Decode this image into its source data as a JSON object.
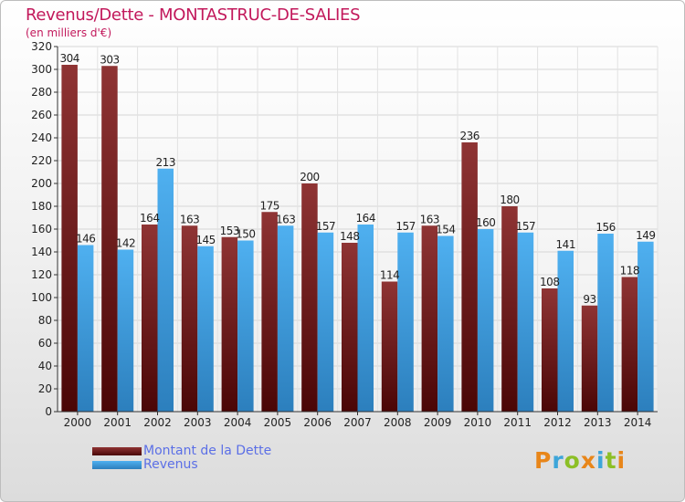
{
  "chart_data": {
    "type": "bar",
    "title": "Revenus/Dette - MONTASTRUC-DE-SALIES",
    "subtitle": "(en milliers d'€)",
    "categories": [
      "2000",
      "2001",
      "2002",
      "2003",
      "2004",
      "2005",
      "2006",
      "2007",
      "2008",
      "2009",
      "2010",
      "2011",
      "2012",
      "2013",
      "2014"
    ],
    "series": [
      {
        "name": "Montant de la Dette",
        "color": "#7a1f1f",
        "values": [
          304,
          303,
          164,
          163,
          153,
          175,
          200,
          148,
          114,
          163,
          236,
          180,
          108,
          93,
          118
        ]
      },
      {
        "name": "Revenus",
        "color": "#3d9be0",
        "values": [
          146,
          142,
          213,
          145,
          150,
          163,
          157,
          164,
          157,
          154,
          160,
          157,
          141,
          156,
          149
        ]
      }
    ],
    "ylim": [
      0,
      320
    ],
    "yticks": [
      0,
      20,
      40,
      60,
      80,
      100,
      120,
      140,
      160,
      180,
      200,
      220,
      240,
      260,
      280,
      300,
      320
    ],
    "grid": true,
    "legend": "bottom-left"
  },
  "brand": {
    "letters": [
      "P",
      "r",
      "o",
      "x",
      "i",
      "t",
      "i"
    ],
    "colors": [
      "#e8861a",
      "#3da5d9",
      "#8cbf26",
      "#e8861a",
      "#3da5d9",
      "#8cbf26",
      "#e8861a"
    ]
  }
}
